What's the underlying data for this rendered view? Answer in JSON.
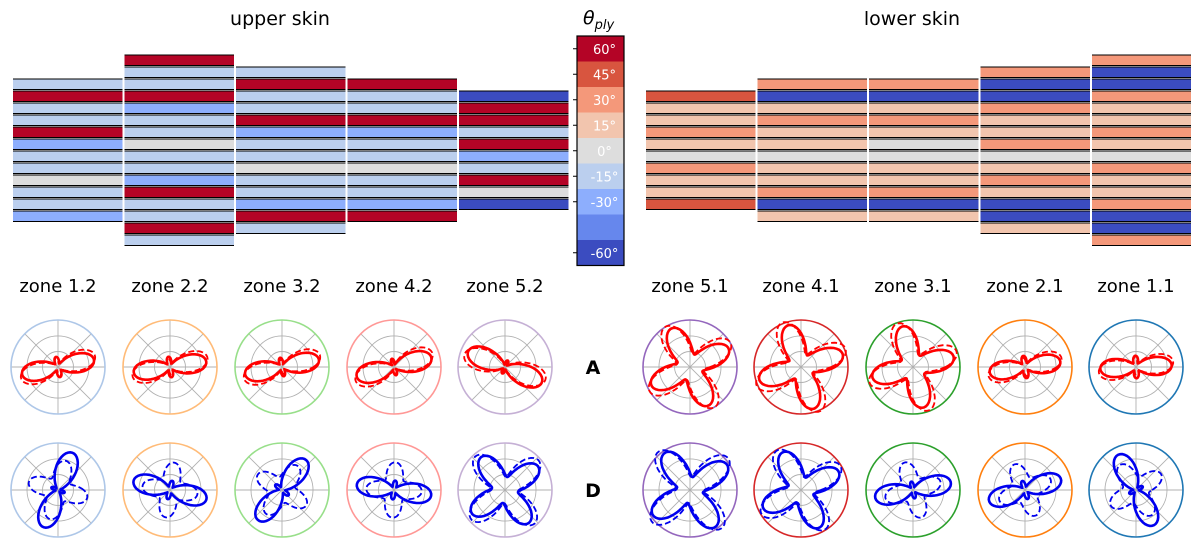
{
  "panels": {
    "upper": {
      "title": "upper skin",
      "zones": [
        "zone 1.2",
        "zone 2.2",
        "zone 3.2",
        "zone 4.2",
        "zone 5.2"
      ],
      "zone_colors": [
        "#aec7e8",
        "#ffbb78",
        "#98df8a",
        "#ff9896",
        "#c5b0d5"
      ]
    },
    "lower": {
      "title": "lower skin",
      "zones": [
        "zone 5.1",
        "zone 4.1",
        "zone 3.1",
        "zone 2.1",
        "zone 1.1"
      ],
      "zone_colors": [
        "#9467bd",
        "#d62728",
        "#2ca02c",
        "#ff7f0e",
        "#1f77b4"
      ]
    }
  },
  "colorbar": {
    "title_symbol": "θ",
    "title_subscript": "ply",
    "levels": [
      {
        "label": "60°",
        "color": "#b40426"
      },
      {
        "label": "45°",
        "color": "#d8553f"
      },
      {
        "label": "30°",
        "color": "#f4987a"
      },
      {
        "label": "15°",
        "color": "#f2c5ae"
      },
      {
        "label": "0°",
        "color": "#dddddd"
      },
      {
        "label": "-15°",
        "color": "#bbcfee"
      },
      {
        "label": "-30°",
        "color": "#8daefd"
      },
      {
        "label": "",
        "color": "#6687ed"
      },
      {
        "label": "-60°",
        "color": "#3b4cc0"
      }
    ]
  },
  "row_labels": [
    "A",
    "D"
  ],
  "curve_colors": {
    "A": "#ff0000",
    "D": "#0000ee"
  }
}
